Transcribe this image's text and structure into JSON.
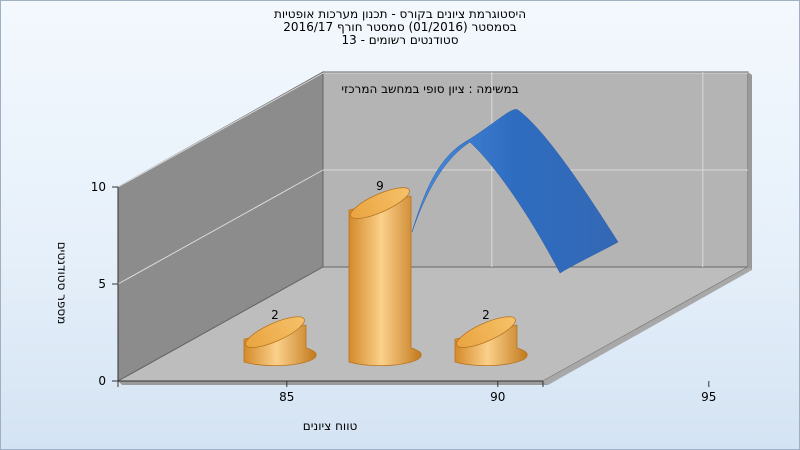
{
  "titles": {
    "line1": "היסטוגרמת ציונים בקורס - תכנון מערכות אופטיות",
    "line2": "בסמסטר  (01/2016)  סמסטר חורף 2016/17",
    "line3": "סטודנטים רשומים - 13"
  },
  "chart_data": {
    "type": "bar",
    "subtitle": "במשימה : ציון סופי במחשב המרכזי",
    "xlabel": "טווח ציונים",
    "ylabel": "מספר סטודנטים",
    "x_tick_labels": [
      "85",
      "90",
      "95"
    ],
    "y_tick_labels": [
      "0",
      "5",
      "10"
    ],
    "ylim": [
      0,
      10
    ],
    "categories": [
      "85",
      "90",
      "95"
    ],
    "values": [
      2,
      9,
      2
    ],
    "data_labels": [
      "2",
      "9",
      "2"
    ],
    "grid": true,
    "curve": {
      "description_free": true
    },
    "colors": {
      "bar": "#e8a23c",
      "curve": "#3a78c8",
      "wall": "#8c8c8c",
      "back": "#b4b4b4",
      "floor": "#bdbdbd"
    }
  }
}
